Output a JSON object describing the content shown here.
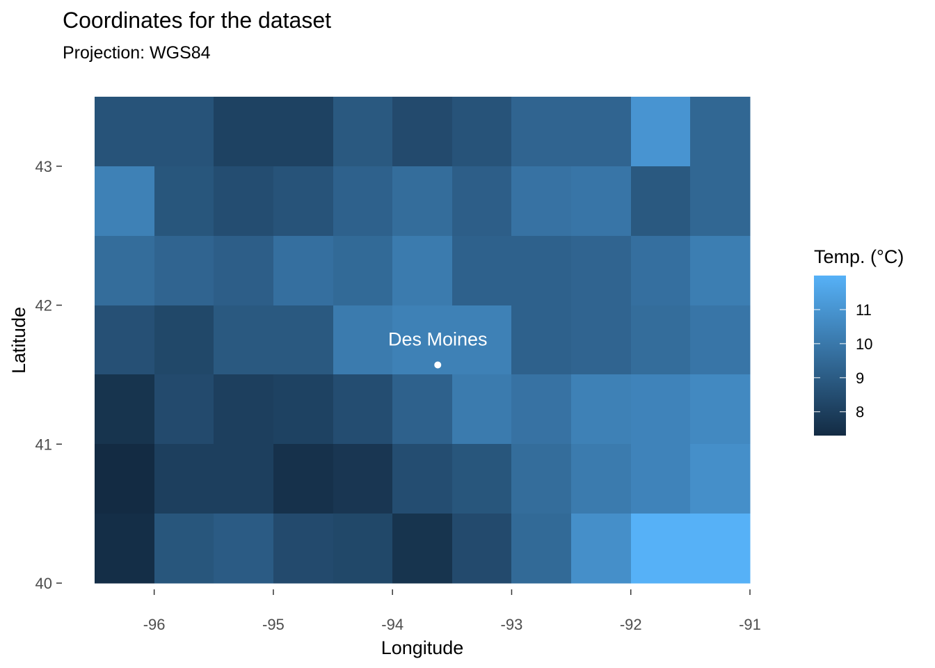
{
  "chart_data": {
    "type": "heatmap",
    "title": "Coordinates for the dataset",
    "subtitle": "Projection: WGS84",
    "xlabel": "Longitude",
    "ylabel": "Latitude",
    "xlim": [
      -96.5,
      -91
    ],
    "ylim": [
      40,
      43.5
    ],
    "x_ticks": [
      -96,
      -95,
      -94,
      -93,
      -92,
      -91
    ],
    "y_ticks": [
      40,
      41,
      42,
      43
    ],
    "x_tick_labels": [
      "-96",
      "-95",
      "-94",
      "-93",
      "-92",
      "-91"
    ],
    "y_tick_labels": [
      "40",
      "41",
      "42",
      "43"
    ],
    "cell_width": 0.5,
    "cell_height": 0.5,
    "x_centers": [
      -96.25,
      -95.75,
      -95.25,
      -94.75,
      -94.25,
      -93.75,
      -93.25,
      -92.75,
      -92.25,
      -91.75,
      -91.25
    ],
    "y_centers": [
      43.25,
      42.75,
      42.25,
      41.75,
      41.25,
      40.75,
      40.25
    ],
    "values": [
      [
        8.7,
        8.7,
        8.1,
        8.1,
        8.9,
        8.4,
        8.7,
        9.3,
        9.3,
        11.0,
        9.4
      ],
      [
        10.3,
        8.8,
        8.5,
        8.7,
        9.2,
        9.6,
        9.1,
        9.8,
        9.9,
        8.9,
        9.4
      ],
      [
        9.6,
        9.3,
        9.1,
        9.7,
        9.5,
        10.1,
        9.2,
        9.2,
        9.3,
        9.7,
        10.2
      ],
      [
        8.6,
        8.3,
        8.9,
        8.9,
        10.1,
        10.3,
        10.3,
        9.2,
        9.3,
        9.6,
        9.9
      ],
      [
        7.6,
        8.4,
        8.0,
        8.1,
        8.5,
        9.2,
        10.1,
        9.8,
        10.3,
        10.4,
        10.6
      ],
      [
        7.3,
        8.0,
        8.0,
        7.5,
        7.7,
        8.5,
        8.8,
        9.6,
        10.1,
        10.4,
        10.8
      ],
      [
        7.4,
        8.8,
        9.0,
        8.4,
        8.3,
        7.6,
        8.4,
        9.5,
        10.8,
        12.0,
        12.0
      ]
    ],
    "legend": {
      "title": "Temp. (°C)",
      "position": "right",
      "breaks": [
        8,
        9,
        10,
        11
      ],
      "labels": [
        "8",
        "9",
        "10",
        "11"
      ],
      "min": 7.3,
      "max": 12.0,
      "low_color": "#132b43",
      "high_color": "#56b1f7"
    },
    "annotation": {
      "label": "Des Moines",
      "lon": -93.62,
      "lat": 41.57
    },
    "grid": false
  }
}
